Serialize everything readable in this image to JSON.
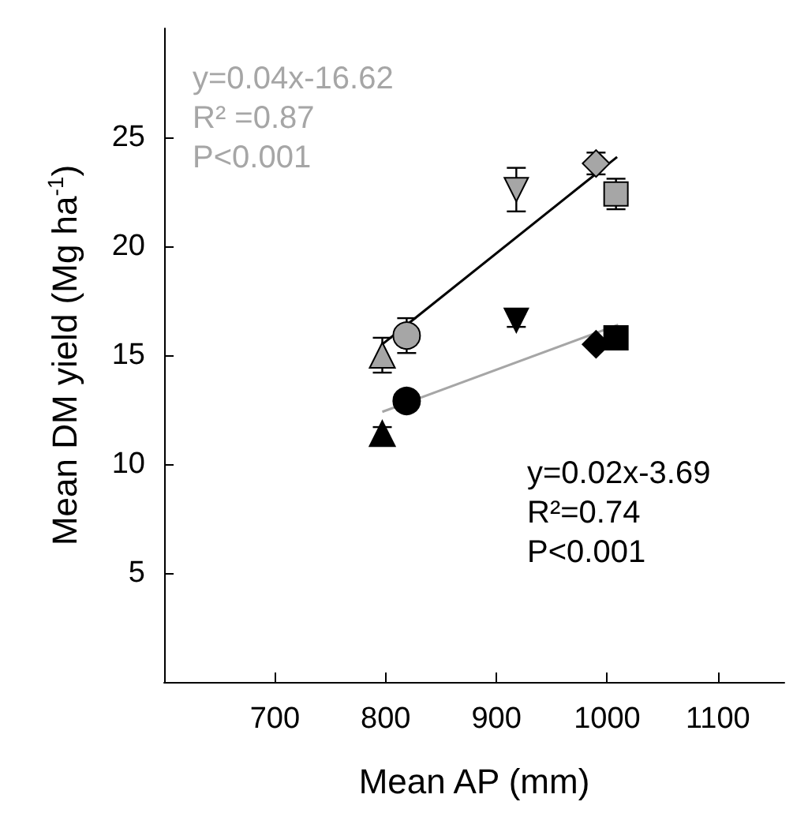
{
  "chart_data": {
    "type": "scatter",
    "xlabel": "Mean AP (mm)",
    "ylabel": "Mean DM yield (Mg ha$^{-1}$)",
    "xlim": [
      600,
      1160
    ],
    "xticks": [
      700,
      800,
      900,
      1000,
      1100
    ],
    "ylim": [
      0,
      30
    ],
    "yticks": [
      5,
      10,
      15,
      20,
      25
    ],
    "grid": false,
    "series": [
      {
        "marker": "triangle",
        "x": [
          797,
          797
        ],
        "values": [
          15.0,
          11.4
        ],
        "colors": [
          "#a6a6a6",
          "#000000"
        ],
        "errors": [
          0.8,
          0.3
        ]
      },
      {
        "marker": "circle",
        "x": [
          819,
          819
        ],
        "values": [
          15.9,
          12.9
        ],
        "colors": [
          "#a6a6a6",
          "#000000"
        ],
        "errors": [
          0.8,
          null
        ]
      },
      {
        "marker": "triangle-down",
        "x": [
          918,
          918
        ],
        "values": [
          22.6,
          16.6
        ],
        "colors": [
          "#a6a6a6",
          "#000000"
        ],
        "errors": [
          1.0,
          0.3
        ]
      },
      {
        "marker": "diamond",
        "x": [
          990,
          990
        ],
        "values": [
          23.8,
          15.5
        ],
        "colors": [
          "#a6a6a6",
          "#000000"
        ],
        "errors": [
          0.5,
          null
        ]
      },
      {
        "marker": "square",
        "x": [
          1008,
          1008
        ],
        "values": [
          22.4,
          15.8
        ],
        "colors": [
          "#a6a6a6",
          "#000000"
        ],
        "errors": [
          0.7,
          null
        ]
      },
      {
        "type": "line",
        "marker": "none",
        "color": "#000000",
        "x": [
          797,
          1009
        ],
        "values": [
          15.5,
          24.1
        ]
      },
      {
        "type": "line",
        "marker": "none",
        "color": "#a6a6a6",
        "x": [
          797,
          1010
        ],
        "values": [
          12.4,
          16.4
        ]
      }
    ],
    "annotations": [
      "y=0.04x-16.62",
      "R² =0.87",
      "P<0.001",
      "y=0.02x-3.69",
      "R²=0.74",
      "P<0.001"
    ]
  }
}
